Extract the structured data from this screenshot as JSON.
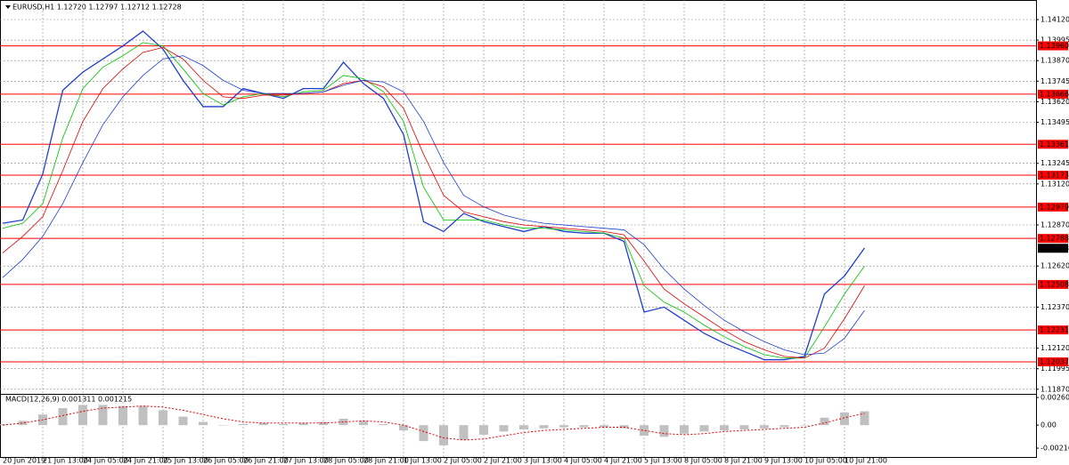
{
  "chart_data": [
    {
      "type": "line",
      "title": "EURUSD,H1 1.12720 1.12797 1.12712 1.12728",
      "categories": [
        "20 Jun 2019",
        null,
        "21 Jun 13:00",
        null,
        "24 Jun 05:00",
        null,
        "24 Jun 21:00",
        null,
        "25 Jun 13:00",
        null,
        "26 Jun 05:00",
        null,
        "26 Jun 21:00",
        null,
        "27 Jun 13:00",
        null,
        "28 Jun 05:00",
        null,
        "28 Jun 21:00",
        null,
        "1 Jul 13:00",
        null,
        "2 Jul 05:00",
        null,
        "2 Jul 21:00",
        null,
        "3 Jul 13:00",
        null,
        "4 Jul 05:00",
        null,
        "4 Jul 21:00",
        null,
        "5 Jul 13:00",
        null,
        "8 Jul 05:00",
        null,
        "8 Jul 21:00",
        null,
        "9 Jul 13:00",
        null,
        "10 Jul 05:00",
        null,
        "10 Jul 21:00",
        null
      ],
      "series": [
        {
          "color": "#1f3fcf",
          "width": 1.3,
          "values": [
            1.1288,
            1.129,
            1.1318,
            1.1369,
            1.138,
            1.1388,
            1.1396,
            1.1405,
            1.1394,
            1.1375,
            1.1359,
            1.1359,
            1.137,
            1.1367,
            1.1364,
            1.137,
            1.137,
            1.1386,
            1.1373,
            1.1364,
            1.1342,
            1.1289,
            1.1283,
            1.1294,
            1.1289,
            1.1286,
            1.1283,
            1.1286,
            1.1283,
            1.1282,
            1.1282,
            1.1277,
            1.1234,
            1.1237,
            1.1229,
            1.1221,
            1.1215,
            1.121,
            1.1205,
            1.1205,
            1.1207,
            1.1245,
            1.1256,
            1.1273
          ]
        },
        {
          "color": "#00c000",
          "width": 0.8,
          "values": [
            1.1285,
            1.1288,
            1.13,
            1.134,
            1.137,
            1.1383,
            1.139,
            1.1398,
            1.1396,
            1.1382,
            1.1367,
            1.136,
            1.1365,
            1.1367,
            1.1365,
            1.1368,
            1.1369,
            1.1378,
            1.1376,
            1.1368,
            1.135,
            1.131,
            1.129,
            1.129,
            1.129,
            1.1287,
            1.1285,
            1.1285,
            1.1284,
            1.1283,
            1.1282,
            1.1279,
            1.125,
            1.124,
            1.1234,
            1.1226,
            1.1219,
            1.1213,
            1.1208,
            1.1206,
            1.1206,
            1.1225,
            1.1245,
            1.1262
          ]
        },
        {
          "color": "#e00000",
          "width": 0.8,
          "values": [
            1.127,
            1.128,
            1.1292,
            1.132,
            1.135,
            1.137,
            1.1382,
            1.1392,
            1.1395,
            1.1388,
            1.1375,
            1.1365,
            1.1364,
            1.1366,
            1.1366,
            1.1367,
            1.1368,
            1.1373,
            1.1375,
            1.1371,
            1.1358,
            1.133,
            1.1305,
            1.1295,
            1.1292,
            1.1289,
            1.1287,
            1.1286,
            1.1285,
            1.1284,
            1.1283,
            1.1281,
            1.1265,
            1.1248,
            1.1239,
            1.1231,
            1.1223,
            1.1216,
            1.1211,
            1.1207,
            1.1206,
            1.1212,
            1.123,
            1.125
          ]
        },
        {
          "color": "#1f3fcf",
          "width": 0.8,
          "values": [
            1.1255,
            1.1266,
            1.128,
            1.13,
            1.1325,
            1.1348,
            1.1365,
            1.1378,
            1.1388,
            1.139,
            1.1384,
            1.1375,
            1.1369,
            1.1367,
            1.1367,
            1.1367,
            1.1368,
            1.1372,
            1.1375,
            1.1374,
            1.1368,
            1.135,
            1.1325,
            1.1305,
            1.1298,
            1.1293,
            1.129,
            1.1288,
            1.1287,
            1.1286,
            1.1285,
            1.1284,
            1.1275,
            1.126,
            1.1248,
            1.1238,
            1.1229,
            1.1222,
            1.1216,
            1.1211,
            1.1208,
            1.1209,
            1.1218,
            1.1235
          ]
        }
      ],
      "ylim": [
        1.11842,
        1.14239
      ],
      "yticks": [
        {
          "value": 1.1412,
          "label": "1.14120"
        },
        1.13995,
        {
          "value": 1.1387,
          "label": "1.13870"
        },
        1.13745,
        {
          "value": 1.1362,
          "label": "1.13620"
        },
        1.13495,
        1.13245,
        {
          "value": 1.1312,
          "label": "1.13120"
        },
        {
          "value": 1.1287,
          "label": "1.12870"
        },
        {
          "value": 1.1262,
          "label": "1.12620"
        },
        {
          "value": 1.1237,
          "label": "1.12370"
        },
        {
          "value": 1.1212,
          "label": "1.12120"
        },
        1.11995,
        {
          "value": 1.1187,
          "label": "1.11870"
        }
      ],
      "levels": [
        {
          "value": 1.1396,
          "label": "1.13960"
        },
        1.13666,
        1.13361,
        1.13173,
        1.12979,
        1.12788,
        1.12508,
        1.12231,
        1.12037
      ],
      "level_color": "#ff0000",
      "current_price": 1.12728,
      "grid": true
    },
    {
      "type": "macd",
      "title": "MACD(12,26,9) 0.001311 0.001215",
      "values": [
        0.0001,
        0.0004,
        0.001,
        0.0016,
        0.0019,
        0.0019,
        0.0018,
        0.0018,
        0.0014,
        0.0008,
        0.0003,
        0.0,
        0.0001,
        0.0002,
        0.0001,
        0.0002,
        0.0003,
        0.0006,
        0.0004,
        0.0001,
        -0.0005,
        -0.0015,
        -0.0019,
        -0.0014,
        -0.0009,
        -0.0006,
        -0.0004,
        -0.0003,
        -0.0002,
        -0.0002,
        -0.0002,
        -0.0003,
        -0.001,
        -0.0011,
        -0.0008,
        -0.0006,
        -0.0005,
        -0.0004,
        -0.0003,
        -0.0002,
        0.0,
        0.0007,
        0.0012,
        0.0013
      ],
      "color": "#c0c0c0",
      "signal": [
        0.0,
        0.0002,
        0.0005,
        0.0009,
        0.0013,
        0.0016,
        0.0017,
        0.0018,
        0.0017,
        0.0014,
        0.001,
        0.0006,
        0.0003,
        0.0002,
        0.0002,
        0.0002,
        0.0002,
        0.0003,
        0.0004,
        0.0003,
        0.0,
        -0.0006,
        -0.0012,
        -0.0014,
        -0.0013,
        -0.001,
        -0.0007,
        -0.0005,
        -0.0004,
        -0.0003,
        -0.0002,
        -0.0002,
        -0.0005,
        -0.0008,
        -0.0009,
        -0.0008,
        -0.0006,
        -0.0005,
        -0.0004,
        -0.0003,
        -0.0002,
        0.0002,
        0.0007,
        0.0011
      ],
      "signal_color": "#e00000",
      "ylim": [
        -0.00308,
        0.00294
      ],
      "yticks": [
        0.002603,
        {
          "value": 0,
          "label": "0.00"
        },
        -0.002165
      ]
    }
  ]
}
